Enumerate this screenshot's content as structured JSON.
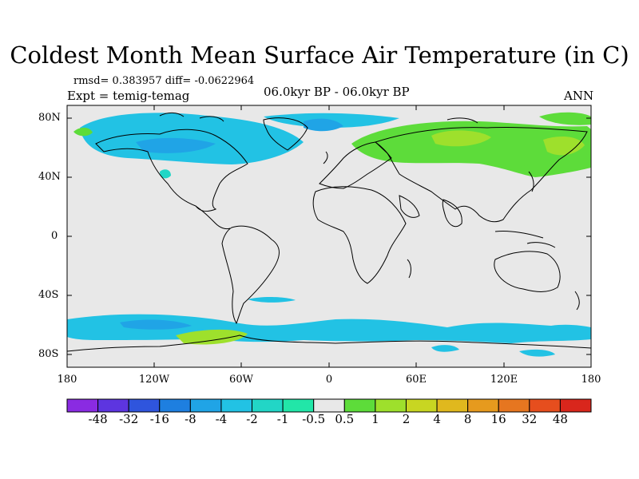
{
  "title": "Coldest Month Mean Surface Air Temperature (in C)",
  "stats": "rmsd= 0.383957 diff= -0.0622964",
  "experiment": "Expt = temig-temag",
  "period": "06.0kyr BP - 06.0kyr BP",
  "season": "ANN",
  "lat_labels": [
    "80N",
    "40N",
    "0",
    "40S",
    "80S"
  ],
  "lon_labels": [
    "180",
    "120W",
    "60W",
    "0",
    "60E",
    "120E",
    "180"
  ],
  "colorbar": {
    "colors": [
      "#8a2be2",
      "#5d35e0",
      "#2f55dd",
      "#1e7fe0",
      "#20a4e6",
      "#22c2e4",
      "#22d6c6",
      "#22e6a8",
      "#e8e8e8",
      "#5ddc3a",
      "#9ee02c",
      "#c8d622",
      "#e0b81e",
      "#e69a1e",
      "#e67620",
      "#e64e1e",
      "#d9261c"
    ],
    "labels": [
      "-48",
      "-32",
      "-16",
      "-8",
      "-4",
      "-2",
      "-1",
      "-0.5",
      "0.5",
      "1",
      "2",
      "4",
      "8",
      "16",
      "32",
      "48"
    ]
  }
}
